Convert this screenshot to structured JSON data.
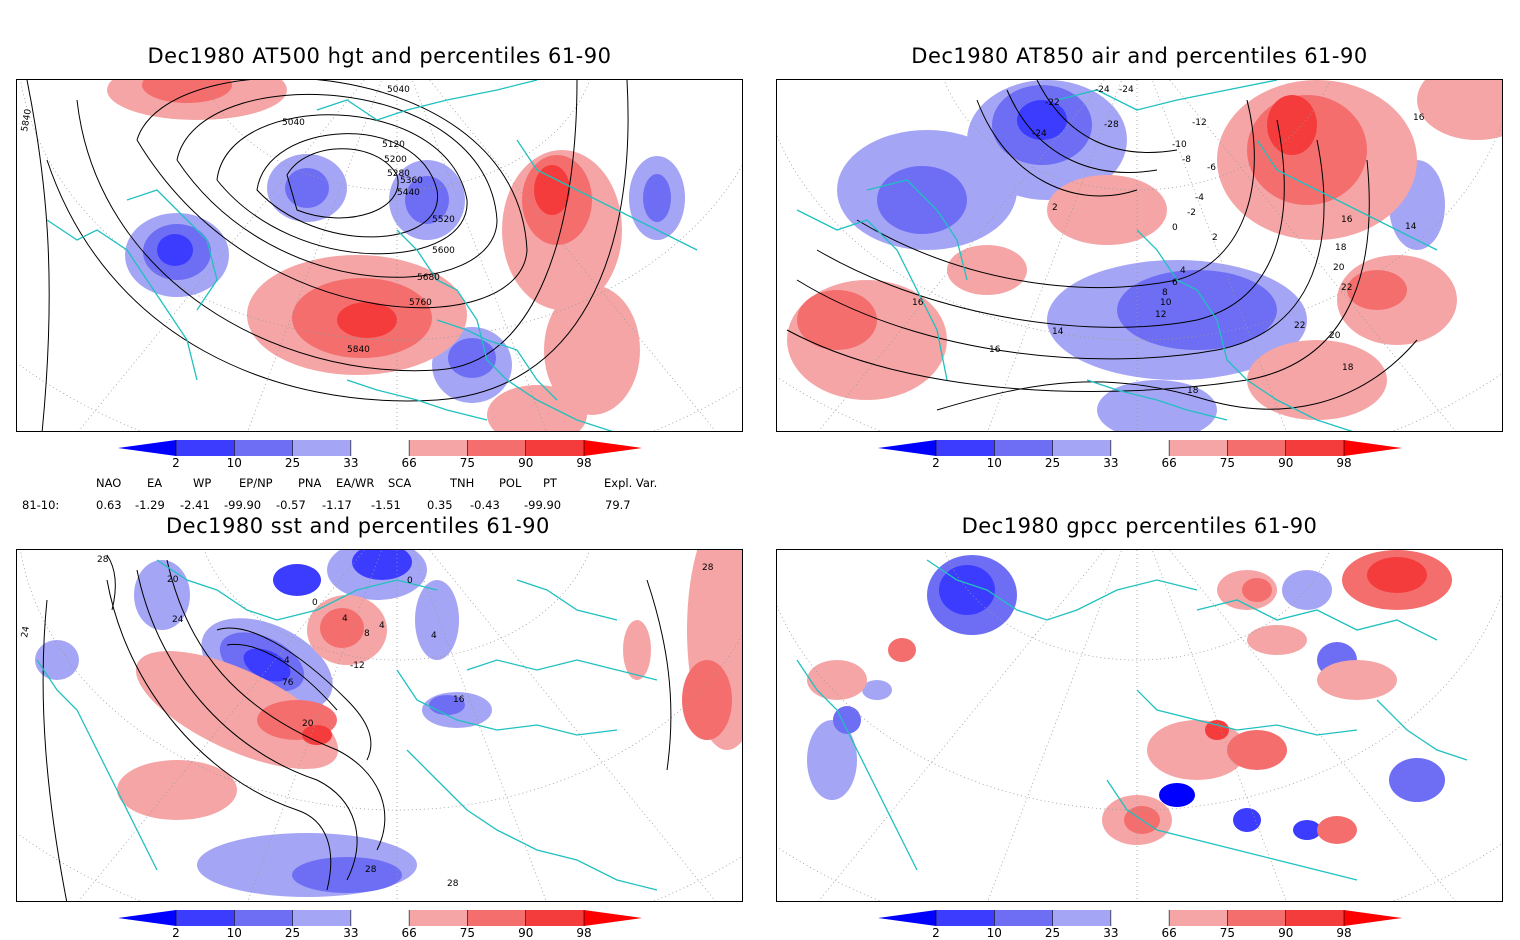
{
  "panels": [
    {
      "title": "Dec1980 AT500 hgt and percentiles 61-90",
      "contour_labels": [
        "5040",
        "5040",
        "5120",
        "5200",
        "5280",
        "5360",
        "5440",
        "5520",
        "5600",
        "5680",
        "5760",
        "5840",
        "5840"
      ]
    },
    {
      "title": "Dec1980 AT850 air and percentiles 61-90",
      "contour_labels": [
        "-24",
        "-24",
        "-22",
        "-24",
        "-28",
        "-12",
        "-10",
        "-8",
        "-6",
        "-4",
        "-2",
        "0",
        "2",
        "2",
        "4",
        "6",
        "8",
        "10",
        "12",
        "14",
        "14",
        "16",
        "16",
        "16",
        "18",
        "20",
        "20",
        "22",
        "22",
        "18",
        "18",
        "16"
      ]
    },
    {
      "title": "Dec1980 sst and percentiles 61-90",
      "contour_labels": [
        "28",
        "20",
        "24",
        "24",
        "0",
        "0",
        "4",
        "4",
        "8",
        "4",
        "4",
        "76",
        "-12",
        "20",
        "16",
        "28",
        "28",
        "28"
      ]
    },
    {
      "title": "Dec1980 gpcc percentiles 61-90",
      "contour_labels": []
    }
  ],
  "colorbar": {
    "labels": [
      "2",
      "10",
      "25",
      "33",
      "66",
      "75",
      "90",
      "98"
    ],
    "colors": [
      "#0000ff",
      "#3c3cff",
      "#6e6ef5",
      "#a5a5f5",
      "#ffffff",
      "#f5a5a5",
      "#f56e6e",
      "#f53c3c",
      "#ff0000"
    ]
  },
  "indices": {
    "headers": [
      "NAO",
      "EA",
      "WP",
      "EP/NP",
      "PNA",
      "EA/WR",
      "SCA",
      "TNH",
      "POL",
      "PT",
      "Expl. Var."
    ],
    "row_label": "81-10:",
    "values": [
      "0.63",
      "-1.29",
      "-2.41",
      "-99.90",
      "-0.57",
      "-1.17",
      "-1.51",
      "0.35",
      "-0.43",
      "-99.90",
      "79.7"
    ]
  },
  "colors": {
    "coast": "#20c0c0",
    "grid": "#9a9a9a",
    "contour": "#000000"
  }
}
